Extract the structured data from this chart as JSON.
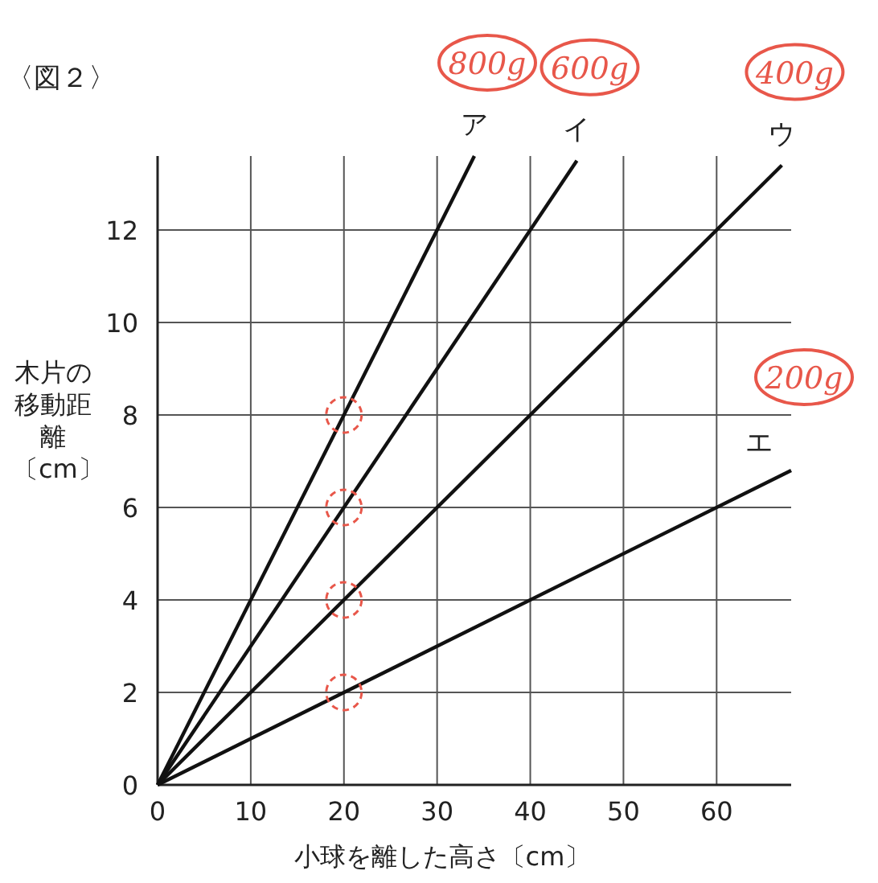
{
  "chart_data": {
    "type": "line",
    "title": "〈図２〉",
    "xlabel": "小球を離した高さ〔cm〕",
    "ylabel": "木片の移動距離〔cm〕",
    "xlim": [
      0,
      68
    ],
    "ylim": [
      0,
      13.6
    ],
    "xticks": [
      0,
      10,
      20,
      30,
      40,
      50,
      60
    ],
    "yticks": [
      0,
      2,
      4,
      6,
      8,
      10,
      12
    ],
    "grid": true,
    "series": [
      {
        "name": "ア",
        "color": "#111111",
        "x": [
          0,
          34
        ],
        "values": [
          0,
          13.6
        ]
      },
      {
        "name": "イ",
        "color": "#111111",
        "x": [
          0,
          45
        ],
        "values": [
          0,
          13.5
        ]
      },
      {
        "name": "ウ",
        "color": "#111111",
        "x": [
          0,
          67
        ],
        "values": [
          0,
          13.4
        ]
      },
      {
        "name": "エ",
        "color": "#111111",
        "x": [
          0,
          68
        ],
        "values": [
          0,
          6.8
        ]
      },
      {
        "type": "scatter",
        "color": "#e8574a",
        "x": [
          20,
          20,
          20,
          20
        ],
        "values": [
          8,
          6,
          4,
          2
        ]
      }
    ],
    "annotations": [
      {
        "text": "800g",
        "x": 34,
        "y": 13.6
      },
      {
        "text": "600g",
        "x": 45,
        "y": 13.5
      },
      {
        "text": "400g",
        "x": 67,
        "y": 13.4
      },
      {
        "text": "200g",
        "x": 68,
        "y": 6.8
      }
    ]
  }
}
